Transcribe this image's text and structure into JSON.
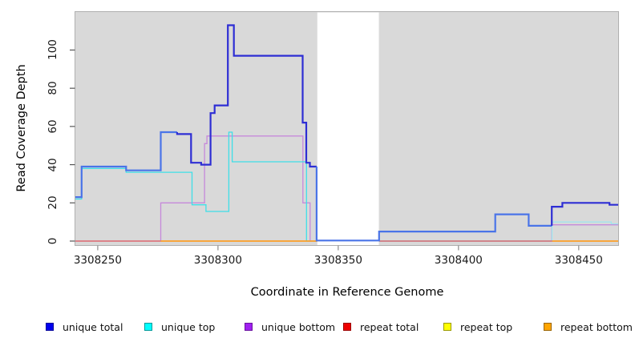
{
  "chart_data": {
    "type": "line",
    "step": true,
    "title": "",
    "xlabel": "Coordinate in Reference Genome",
    "ylabel": "Read Coverage Depth",
    "xlim": [
      3308240.7,
      3308466.4
    ],
    "ylim": [
      -2.1,
      119.9
    ],
    "xticks": [
      3308250,
      3308300,
      3308350,
      3308400,
      3308450
    ],
    "yticks": [
      0,
      20,
      40,
      60,
      80,
      100
    ],
    "grid": false,
    "legend_position": "bottom",
    "plot_bg": "#d9d9d9",
    "plot_border": "#b0b0b0",
    "mask_region": {
      "from": 3308341.3,
      "to": 3308366.9,
      "color": "#ffffff"
    },
    "series": [
      {
        "name": "unique bottom",
        "color": "#c689da",
        "width": 1.3,
        "points": [
          [
            3308240.7,
            0
          ],
          [
            3308276.2,
            20
          ],
          [
            3308294.4,
            51
          ],
          [
            3308295.4,
            55
          ],
          [
            3308335.3,
            20
          ],
          [
            3308338.3,
            0
          ],
          [
            3308438.8,
            8.5
          ],
          [
            3308466.4,
            8.5
          ]
        ]
      },
      {
        "name": "unique top",
        "width": 1.3,
        "segments": [
          {
            "color": "#3edfe8",
            "points": [
              [
                3308240.7,
                22
              ],
              [
                3308243.3,
                38
              ],
              [
                3308261.8,
                36
              ],
              [
                3308289.2,
                19
              ],
              [
                3308295.0,
                15.5
              ],
              [
                3308304.5,
                57
              ],
              [
                3308305.9,
                41.5
              ],
              [
                3308336.8,
                0
              ],
              [
                3308438.9,
                0
              ]
            ]
          },
          {
            "color": "#9de6ef",
            "points": [
              [
                3308438.9,
                0
              ],
              [
                3308438.9,
                10
              ],
              [
                3308463.5,
                9
              ],
              [
                3308466.4,
                9
              ]
            ]
          }
        ]
      },
      {
        "name": "repeat top",
        "color": "#ffff00",
        "width": 1.3,
        "points": [
          [
            3308240.7,
            0
          ],
          [
            3308466.4,
            0
          ]
        ]
      },
      {
        "name": "repeat total",
        "color": "#d9537c",
        "width": 1.3,
        "points": [
          [
            3308240.7,
            0
          ],
          [
            3308466.4,
            0
          ]
        ]
      },
      {
        "name": "repeat bottom",
        "color": "#ff9d1f",
        "width": 1.5,
        "segments": [
          {
            "color": "#ff9d1f",
            "points": [
              [
                3308276.2,
                0
              ],
              [
                3308341.3,
                0
              ]
            ]
          },
          {
            "color": "#ff9d1f",
            "points": [
              [
                3308439.0,
                0
              ],
              [
                3308466.4,
                0
              ]
            ]
          }
        ]
      },
      {
        "name": "unique total",
        "width": 2.2,
        "segments": [
          {
            "color": "#4a74e8",
            "points": [
              [
                3308240.7,
                23
              ],
              [
                3308243.3,
                39
              ],
              [
                3308261.8,
                37
              ],
              [
                3308276.2,
                57
              ],
              [
                3308283.0,
                57
              ]
            ]
          },
          {
            "color": "#2e2ed4",
            "points": [
              [
                3308283.0,
                57
              ],
              [
                3308283.0,
                56
              ],
              [
                3308288.8,
                41
              ],
              [
                3308293.0,
                40
              ],
              [
                3308296.9,
                67
              ],
              [
                3308298.6,
                71
              ],
              [
                3308304.1,
                113
              ],
              [
                3308306.6,
                97
              ],
              [
                3308335.2,
                62
              ],
              [
                3308336.7,
                41
              ],
              [
                3308338.2,
                39
              ],
              [
                3308341.0,
                39
              ]
            ]
          },
          {
            "color": "#4a74e8",
            "points": [
              [
                3308341.0,
                39
              ],
              [
                3308341.0,
                0.3
              ],
              [
                3308367.0,
                5
              ],
              [
                3308415.3,
                14
              ],
              [
                3308429.2,
                8
              ],
              [
                3308438.8,
                8
              ]
            ]
          },
          {
            "color": "#2e2ed4",
            "points": [
              [
                3308438.8,
                8
              ],
              [
                3308438.8,
                18
              ],
              [
                3308443.2,
                20
              ],
              [
                3308462.8,
                19
              ],
              [
                3308466.4,
                19
              ]
            ]
          }
        ]
      }
    ],
    "legend": [
      {
        "label": "unique total",
        "fill": "#0000ee",
        "border": "#00009a"
      },
      {
        "label": "unique top",
        "fill": "#00ffff",
        "border": "#009a9a"
      },
      {
        "label": "unique bottom",
        "fill": "#a020f0",
        "border": "#6a11a0"
      },
      {
        "label": "repeat total",
        "fill": "#ee0000",
        "border": "#9a0000"
      },
      {
        "label": "repeat top",
        "fill": "#ffff00",
        "border": "#9a9a00"
      },
      {
        "label": "repeat bottom",
        "fill": "#ffa500",
        "border": "#9a6400"
      }
    ]
  }
}
